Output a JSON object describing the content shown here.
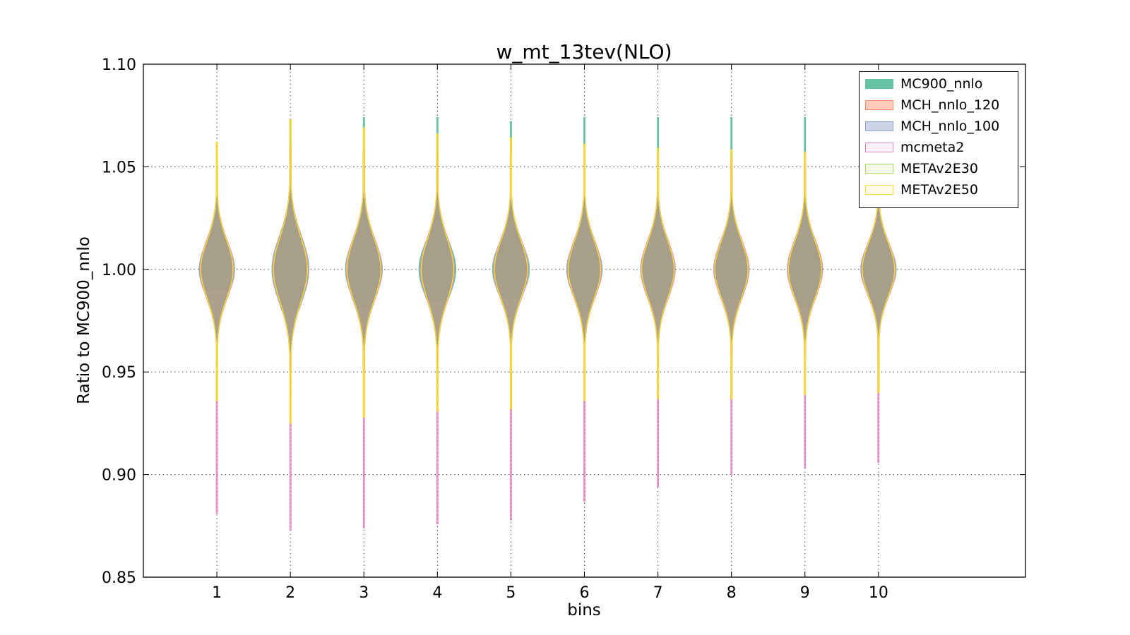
{
  "chart_data": {
    "type": "violin",
    "title": "w_mt_13tev(NLO)",
    "xlabel": "bins",
    "ylabel": "Ratio to MC900_nnlo",
    "ylim": [
      0.85,
      1.1
    ],
    "yticks": [
      "0.85",
      "0.90",
      "0.95",
      "1.00",
      "1.05",
      "1.10"
    ],
    "yticks_values": [
      0.85,
      0.9,
      0.95,
      1.0,
      1.05,
      1.1
    ],
    "categories": [
      "1",
      "2",
      "3",
      "4",
      "5",
      "6",
      "7",
      "8",
      "9",
      "10"
    ],
    "xlim": [
      0.0,
      12.0
    ],
    "grid": true,
    "legend_position": "top-right",
    "series": [
      {
        "name": "MC900_nnlo",
        "color": "#66c2a5",
        "fill_opacity": 1.0,
        "min": [
          0.99,
          0.98,
          0.981,
          0.985,
          0.986,
          0.98,
          0.983,
          0.986,
          0.982,
          0.98
        ],
        "max": [
          1.05,
          1.073,
          1.074,
          1.074,
          1.072,
          1.074,
          1.074,
          1.074,
          1.074,
          1.04
        ],
        "width": [
          0.48,
          0.5,
          0.5,
          0.5,
          0.5,
          0.48,
          0.47,
          0.48,
          0.48,
          0.48
        ],
        "spread": [
          0.013,
          0.016,
          0.014,
          0.014,
          0.013,
          0.013,
          0.013,
          0.013,
          0.013,
          0.012
        ]
      },
      {
        "name": "MCH_nnlo_120",
        "color": "#fc8d62",
        "fill_opacity": 0.35,
        "min": [
          0.955,
          0.95,
          0.95,
          0.955,
          0.95,
          0.955,
          0.958,
          0.958,
          0.958,
          0.96
        ],
        "max": [
          1.05,
          1.06,
          1.058,
          1.056,
          1.056,
          1.054,
          1.052,
          1.054,
          1.052,
          1.04
        ],
        "width": [
          0.46,
          0.48,
          0.48,
          0.46,
          0.47,
          0.46,
          0.46,
          0.47,
          0.47,
          0.46
        ],
        "spread": [
          0.014,
          0.016,
          0.015,
          0.015,
          0.014,
          0.014,
          0.014,
          0.014,
          0.014,
          0.013
        ]
      },
      {
        "name": "MCH_nnlo_100",
        "color": "#8da0cb",
        "fill_opacity": 0.25,
        "min": [
          0.955,
          0.95,
          0.95,
          0.955,
          0.95,
          0.955,
          0.958,
          0.958,
          0.958,
          0.96
        ],
        "max": [
          1.05,
          1.06,
          1.058,
          1.056,
          1.056,
          1.054,
          1.052,
          1.054,
          1.052,
          1.04
        ],
        "width": [
          0.46,
          0.48,
          0.48,
          0.46,
          0.47,
          0.46,
          0.46,
          0.47,
          0.47,
          0.46
        ],
        "spread": [
          0.014,
          0.016,
          0.015,
          0.015,
          0.014,
          0.014,
          0.014,
          0.014,
          0.014,
          0.013
        ]
      },
      {
        "name": "mcmeta2",
        "color": "#e78ac3",
        "fill_opacity": 0.1,
        "min": [
          0.881,
          0.873,
          0.874,
          0.876,
          0.878,
          0.887,
          0.894,
          0.9,
          0.903,
          0.906
        ],
        "max": [
          1.05,
          1.06,
          1.058,
          1.056,
          1.056,
          1.054,
          1.052,
          1.054,
          1.052,
          1.04
        ],
        "width": [
          0.46,
          0.48,
          0.48,
          0.46,
          0.47,
          0.46,
          0.46,
          0.47,
          0.47,
          0.46
        ],
        "spread": [
          0.014,
          0.016,
          0.015,
          0.015,
          0.014,
          0.014,
          0.014,
          0.014,
          0.014,
          0.013
        ]
      },
      {
        "name": "METAv2E30",
        "color": "#a6d854",
        "fill_opacity": 0.1,
        "min": [
          0.936,
          0.925,
          0.928,
          0.931,
          0.932,
          0.936,
          0.937,
          0.937,
          0.939,
          0.94
        ],
        "max": [
          1.062,
          1.073,
          1.069,
          1.066,
          1.064,
          1.061,
          1.059,
          1.058,
          1.057,
          1.04
        ],
        "width": [
          0.44,
          0.46,
          0.46,
          0.44,
          0.45,
          0.44,
          0.44,
          0.45,
          0.45,
          0.44
        ],
        "spread": [
          0.014,
          0.016,
          0.015,
          0.015,
          0.014,
          0.014,
          0.014,
          0.014,
          0.014,
          0.013
        ]
      },
      {
        "name": "METAv2E50",
        "color": "#ffd92f",
        "fill_opacity": 0.1,
        "min": [
          0.936,
          0.925,
          0.928,
          0.931,
          0.932,
          0.936,
          0.937,
          0.937,
          0.939,
          0.94
        ],
        "max": [
          1.062,
          1.073,
          1.069,
          1.066,
          1.064,
          1.061,
          1.059,
          1.058,
          1.057,
          1.04
        ],
        "width": [
          0.44,
          0.46,
          0.46,
          0.44,
          0.45,
          0.44,
          0.44,
          0.45,
          0.45,
          0.44
        ],
        "spread": [
          0.014,
          0.016,
          0.015,
          0.015,
          0.014,
          0.014,
          0.014,
          0.014,
          0.014,
          0.013
        ]
      }
    ],
    "body_fill_color": "#a99f8a"
  }
}
